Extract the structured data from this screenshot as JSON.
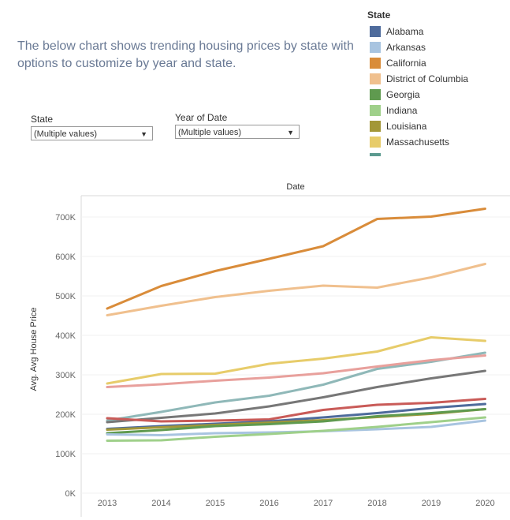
{
  "description": "The below chart shows trending housing prices by state with options to customize by year and state.",
  "filters": {
    "state": {
      "label": "State",
      "value": "(Multiple values)"
    },
    "year": {
      "label": "Year of Date",
      "value": "(Multiple values)"
    }
  },
  "legend": {
    "title": "State",
    "items": [
      {
        "label": "Alabama",
        "color": "#4e6b9c"
      },
      {
        "label": "Arkansas",
        "color": "#a8c4e0"
      },
      {
        "label": "California",
        "color": "#d98c3a"
      },
      {
        "label": "District of Columbia",
        "color": "#f0c08e"
      },
      {
        "label": "Georgia",
        "color": "#5f9a4f"
      },
      {
        "label": "Indiana",
        "color": "#9fd08a"
      },
      {
        "label": "Louisiana",
        "color": "#a39738"
      },
      {
        "label": "Massachusetts",
        "color": "#e7cc6a"
      }
    ]
  },
  "chart_data": {
    "type": "line",
    "title": "Date",
    "xlabel": "",
    "ylabel": "Avg. Avg House Price",
    "x": [
      "2013",
      "2014",
      "2015",
      "2016",
      "2017",
      "2018",
      "2019",
      "2020"
    ],
    "ylim": [
      0,
      750000
    ],
    "yticks": [
      0,
      100000,
      200000,
      300000,
      400000,
      500000,
      600000,
      700000
    ],
    "ytick_labels": [
      "0K",
      "100K",
      "200K",
      "300K",
      "400K",
      "500K",
      "600K",
      "700K"
    ],
    "grid": true,
    "series": [
      {
        "name": "California",
        "color": "#d98c3a",
        "values": [
          468000,
          525000,
          563000,
          594000,
          626000,
          695000,
          701000,
          721000
        ]
      },
      {
        "name": "District of Columbia",
        "color": "#f0c08e",
        "values": [
          451000,
          475000,
          497000,
          513000,
          526000,
          521000,
          547000,
          581000
        ]
      },
      {
        "name": "Massachusetts",
        "color": "#e7cc6a",
        "values": [
          278000,
          302000,
          303000,
          328000,
          341000,
          359000,
          395000,
          386000
        ]
      },
      {
        "color": "#8fb8b8",
        "values": [
          184000,
          206000,
          230000,
          247000,
          275000,
          315000,
          333000,
          356000
        ]
      },
      {
        "color": "#e8a09c",
        "values": [
          269000,
          276000,
          285000,
          293000,
          304000,
          321000,
          337000,
          349000
        ]
      },
      {
        "color": "#777777",
        "values": [
          180000,
          191000,
          202000,
          220000,
          243000,
          269000,
          291000,
          310000
        ]
      },
      {
        "color": "#c95b58",
        "values": [
          190000,
          182000,
          184000,
          187000,
          211000,
          224000,
          229000,
          239000
        ]
      },
      {
        "name": "Alabama",
        "color": "#4e6b9c",
        "values": [
          163000,
          170000,
          176000,
          182000,
          192000,
          203000,
          216000,
          226000
        ]
      },
      {
        "name": "Louisiana",
        "color": "#a39738",
        "values": [
          161000,
          167000,
          173000,
          179000,
          185000,
          193000,
          201000,
          213000
        ]
      },
      {
        "name": "Georgia",
        "color": "#5f9a4f",
        "values": [
          152000,
          160000,
          170000,
          175000,
          182000,
          195000,
          203000,
          213000
        ]
      },
      {
        "name": "Arkansas",
        "color": "#a8c4e0",
        "values": [
          149000,
          147000,
          152000,
          154000,
          157000,
          162000,
          168000,
          184000
        ]
      },
      {
        "name": "Indiana",
        "color": "#9fd08a",
        "values": [
          133000,
          134000,
          143000,
          150000,
          158000,
          168000,
          180000,
          192000
        ]
      }
    ]
  }
}
